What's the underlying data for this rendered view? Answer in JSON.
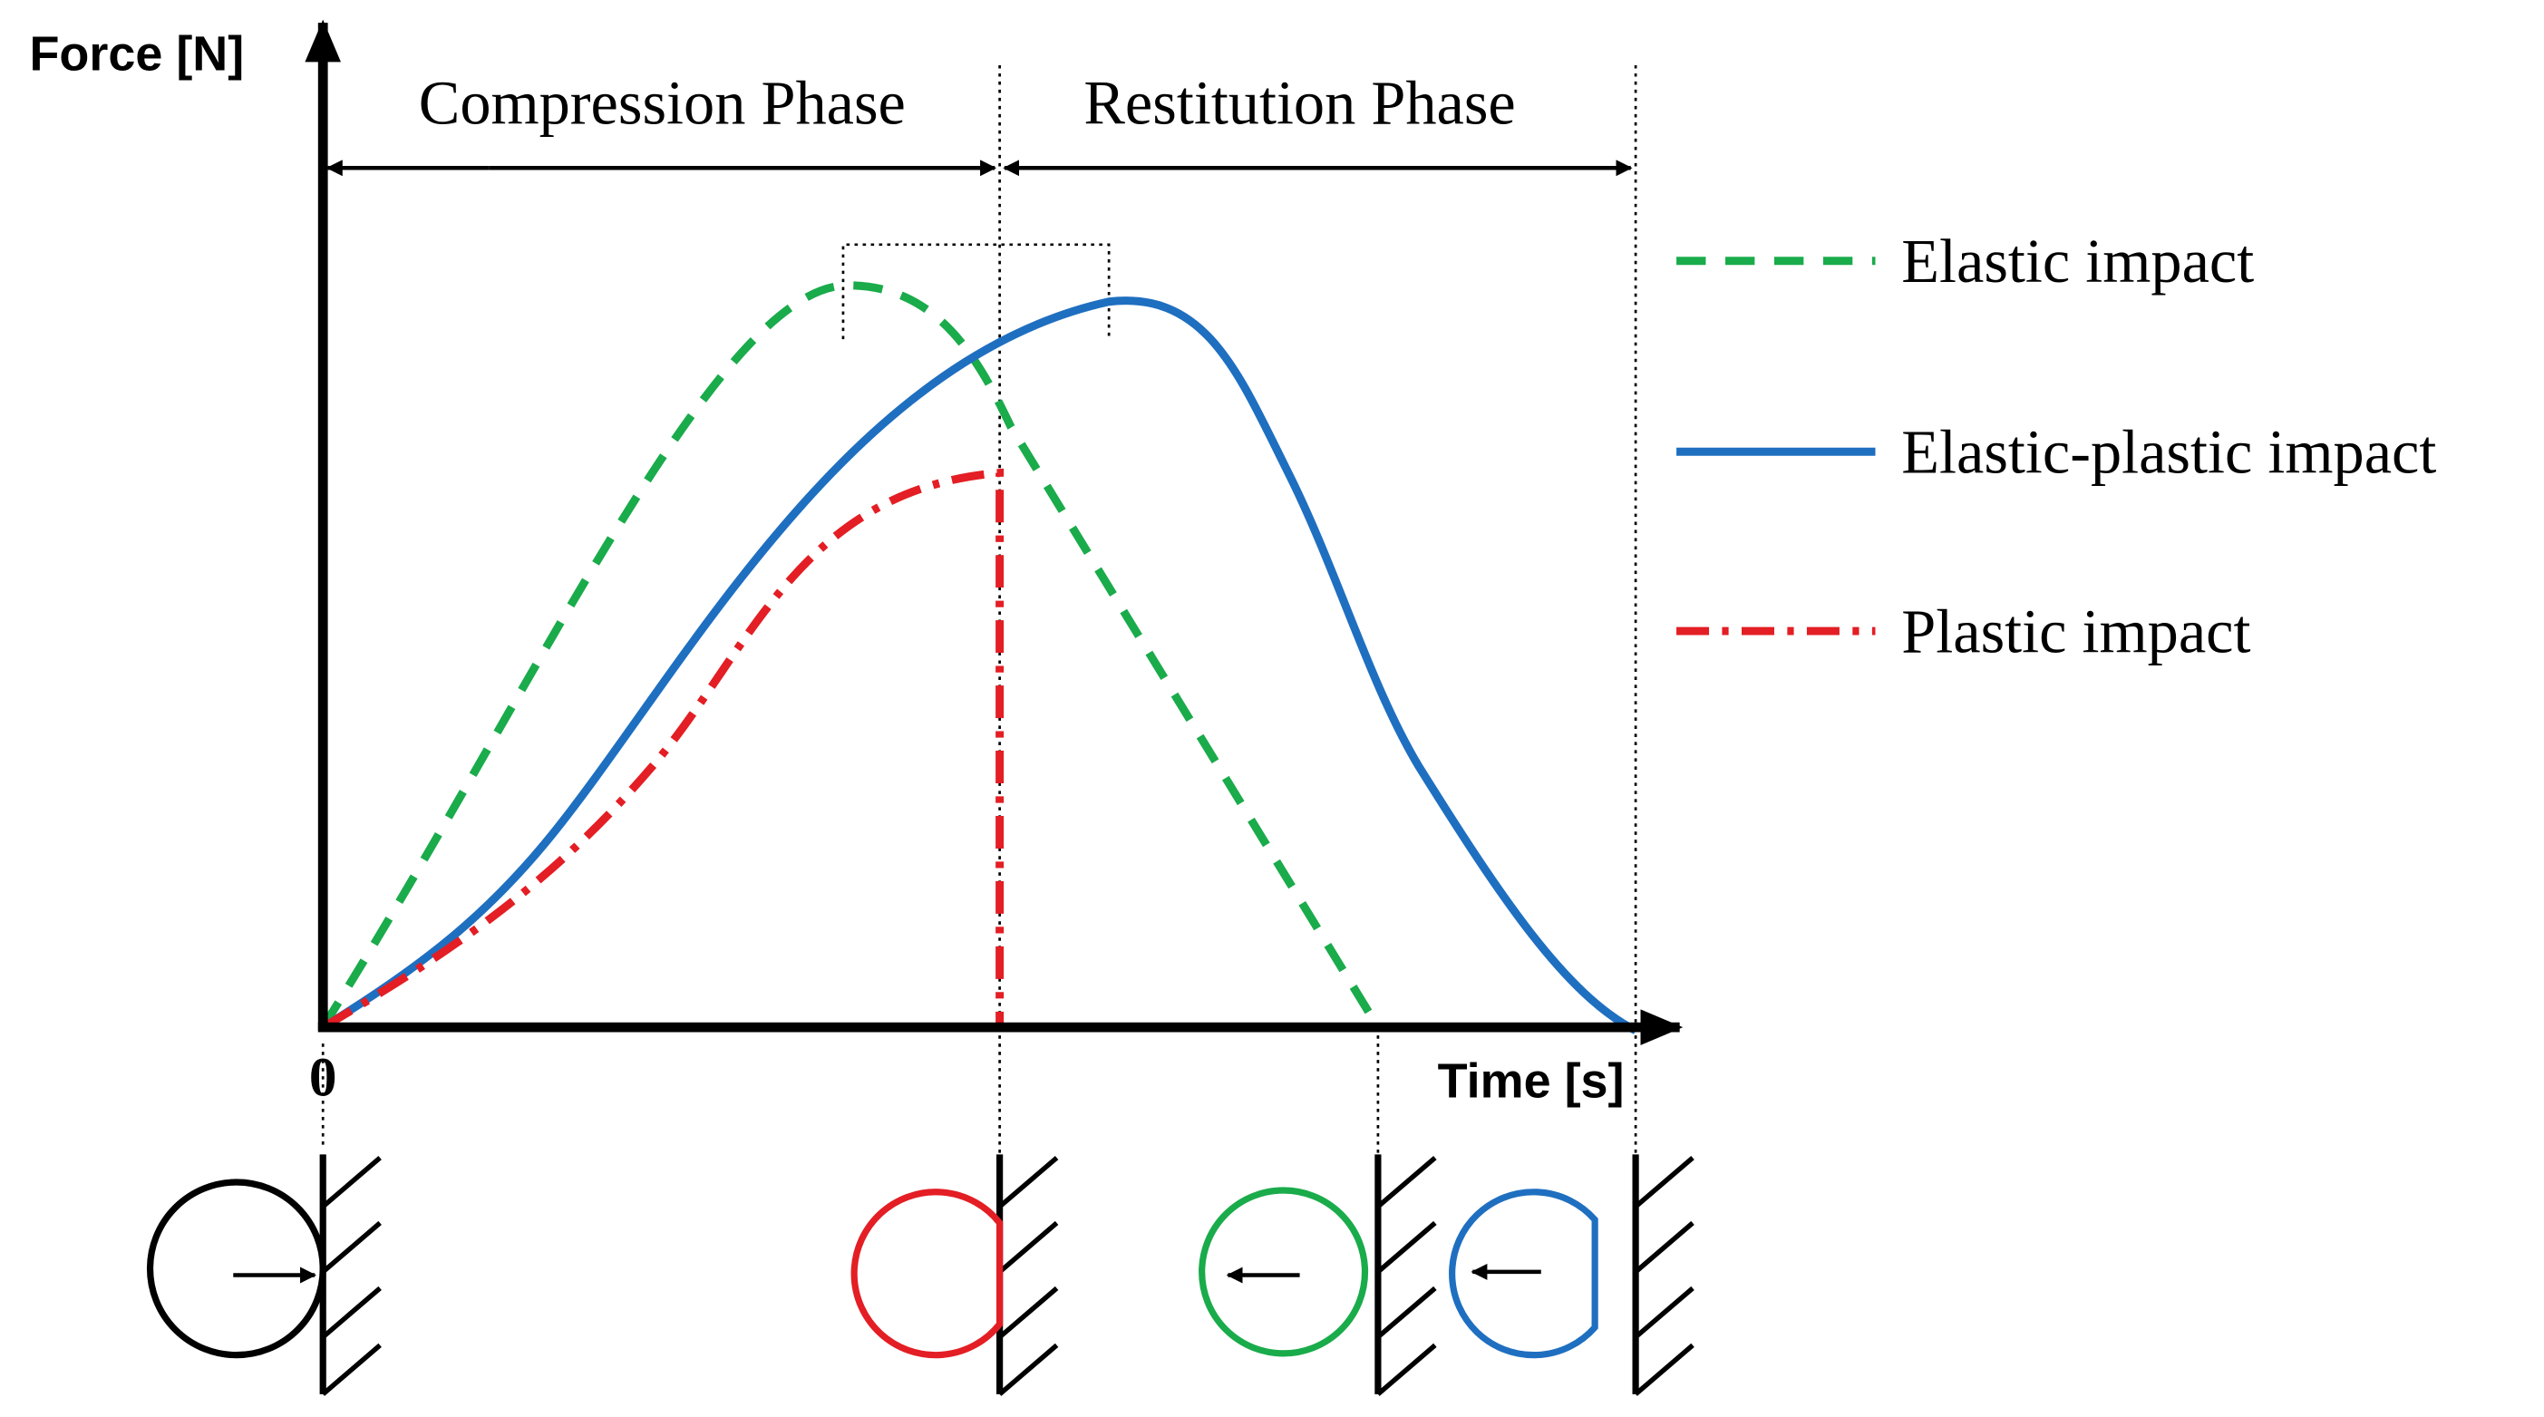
{
  "axes": {
    "y_label": "Force [N]",
    "x_label": "Time [s]",
    "origin": "0"
  },
  "phases": [
    {
      "label": "Compression Phase"
    },
    {
      "label": "Restitution Phase"
    }
  ],
  "legend": [
    {
      "label": "Elastic impact",
      "color": "#1aab4b"
    },
    {
      "label": "Elastic-plastic impact",
      "color": "#1f6fc0"
    },
    {
      "label": "Plastic impact",
      "color": "#e31e24"
    }
  ]
}
